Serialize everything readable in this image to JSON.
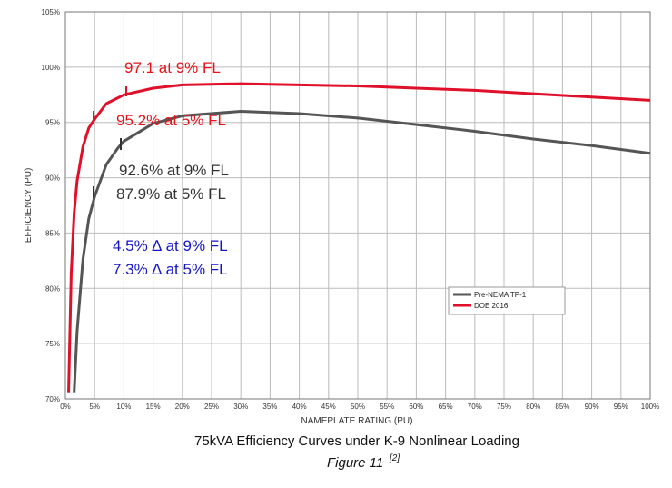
{
  "chart_data": {
    "type": "line",
    "xlabel": "NAMEPLATE RATING (PU)",
    "ylabel": "EFFICIENCY (PU)",
    "caption": "75kVA Efficiency Curves under K-9 Nonlinear Loading",
    "figure_label": "Figure 11",
    "figure_ref": "[2]",
    "xlim": [
      0,
      100
    ],
    "ylim": [
      70,
      105
    ],
    "xticks": [
      {
        "value": 0,
        "label": "0%"
      },
      {
        "value": 5,
        "label": "5%"
      },
      {
        "value": 10,
        "label": "10%"
      },
      {
        "value": 15,
        "label": "15%"
      },
      {
        "value": 20,
        "label": "20%"
      },
      {
        "value": 25,
        "label": "25%"
      },
      {
        "value": 30,
        "label": "30%"
      },
      {
        "value": 35,
        "label": "35%"
      },
      {
        "value": 40,
        "label": "40%"
      },
      {
        "value": 45,
        "label": "45%"
      },
      {
        "value": 50,
        "label": "50%"
      },
      {
        "value": 55,
        "label": "55%"
      },
      {
        "value": 60,
        "label": "60%"
      },
      {
        "value": 65,
        "label": "65%"
      },
      {
        "value": 70,
        "label": "70%"
      },
      {
        "value": 75,
        "label": "75%"
      },
      {
        "value": 80,
        "label": "80%"
      },
      {
        "value": 85,
        "label": "85%"
      },
      {
        "value": 90,
        "label": "90%"
      },
      {
        "value": 95,
        "label": "95%"
      },
      {
        "value": 100,
        "label": "100%"
      }
    ],
    "yticks": [
      {
        "value": 70,
        "label": "70%"
      },
      {
        "value": 75,
        "label": "75%"
      },
      {
        "value": 80,
        "label": "80%"
      },
      {
        "value": 85,
        "label": "85%"
      },
      {
        "value": 90,
        "label": "90%"
      },
      {
        "value": 95,
        "label": "95%"
      },
      {
        "value": 100,
        "label": "100%"
      },
      {
        "value": 105,
        "label": "105%"
      }
    ],
    "grid": true,
    "legend": "lower right",
    "series": [
      {
        "name": "Pre-NEMA TP-1",
        "color": "#555555",
        "x": [
          1.5,
          2,
          3,
          4,
          5,
          7,
          9,
          10,
          15,
          20,
          30,
          40,
          50,
          60,
          70,
          80,
          90,
          100
        ],
        "values": [
          70.6,
          76.1,
          82.6,
          86.3,
          88.3,
          91.2,
          92.7,
          93.3,
          94.9,
          95.6,
          96.0,
          95.8,
          95.4,
          94.8,
          94.2,
          93.5,
          92.9,
          92.2
        ]
      },
      {
        "name": "DOE 2016",
        "color": "#e0102a",
        "x": [
          0.55,
          1,
          1.5,
          2,
          3,
          4,
          5,
          7,
          10,
          15,
          20,
          30,
          40,
          50,
          60,
          70,
          80,
          90,
          100
        ],
        "values": [
          70.6,
          81.4,
          86.8,
          89.7,
          92.8,
          94.5,
          95.3,
          96.7,
          97.5,
          98.1,
          98.4,
          98.5,
          98.4,
          98.3,
          98.1,
          97.9,
          97.6,
          97.3,
          97.0
        ]
      }
    ],
    "annotations": [
      {
        "text": "97.1 at 9% FL",
        "color": "#e8131b"
      },
      {
        "text": "95.2% at 5% FL",
        "color": "#e8131b"
      },
      {
        "text": "92.6% at 9% FL",
        "color": "#333333"
      },
      {
        "text": "87.9% at 5% FL",
        "color": "#333333"
      },
      {
        "text": "4.5% ∆ at 9% FL",
        "color": "#1414c8"
      },
      {
        "text": "7.3% ∆ at 5% FL",
        "color": "#1414c8"
      }
    ]
  }
}
